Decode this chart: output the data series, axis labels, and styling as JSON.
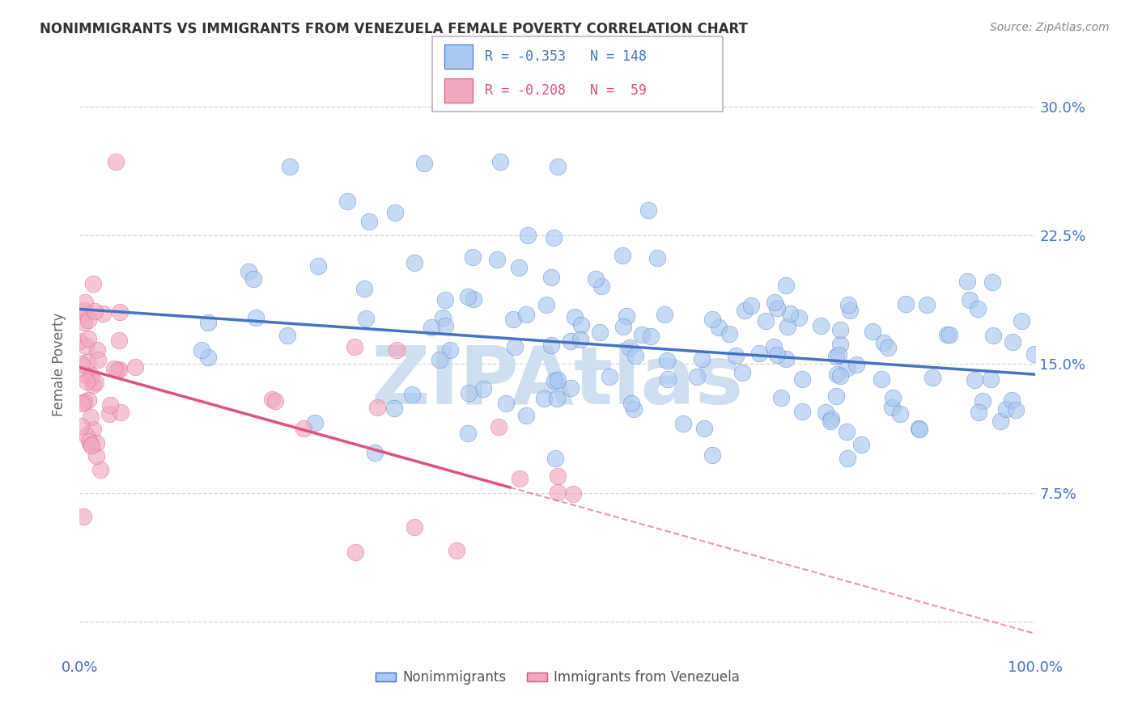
{
  "title": "NONIMMIGRANTS VS IMMIGRANTS FROM VENEZUELA FEMALE POVERTY CORRELATION CHART",
  "source": "Source: ZipAtlas.com",
  "ylabel": "Female Poverty",
  "legend_label_1": "Nonimmigrants",
  "legend_label_2": "Immigrants from Venezuela",
  "R1": -0.353,
  "N1": 148,
  "R2": -0.208,
  "N2": 59,
  "xlim": [
    0.0,
    1.0
  ],
  "ylim": [
    -0.02,
    0.32
  ],
  "yticks": [
    0.075,
    0.15,
    0.225,
    0.3
  ],
  "ytick_labels": [
    "7.5%",
    "15.0%",
    "22.5%",
    "30.0%"
  ],
  "xtick_labels": [
    "0.0%",
    "100.0%"
  ],
  "color_nonimmigrants": "#aac8f0",
  "color_immigrants": "#f0a8c0",
  "color_line1": "#4472c4",
  "color_line2": "#e05080",
  "color_axis_labels": "#4472c4",
  "background_color": "#ffffff",
  "title_color": "#333333",
  "source_color": "#888888",
  "watermark_color": "#d0dff0",
  "grid_color": "#cccccc",
  "line1_intercept": 0.182,
  "line1_slope": -0.038,
  "line2_intercept": 0.148,
  "line2_slope": -0.155
}
